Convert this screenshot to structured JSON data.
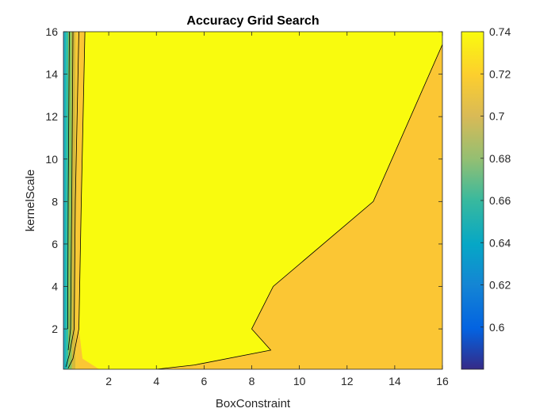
{
  "chart_data": {
    "type": "contour",
    "title": "Accuracy Grid Search",
    "xlabel": "BoxConstraint",
    "ylabel": "kernelScale",
    "xlim": [
      0.1,
      16
    ],
    "ylim": [
      0.1,
      16
    ],
    "x_ticks": [
      2,
      4,
      6,
      8,
      10,
      12,
      14,
      16
    ],
    "y_ticks": [
      2,
      4,
      6,
      8,
      10,
      12,
      14,
      16
    ],
    "colorbar": {
      "range": [
        0.58,
        0.74
      ],
      "ticks": [
        0.6,
        0.62,
        0.64,
        0.66,
        0.68,
        0.7,
        0.72,
        0.74
      ],
      "colormap": "parula"
    },
    "regions": [
      {
        "level": 0.73,
        "color": "#F9FB0E",
        "boundary": [
          [
            1.0,
            16
          ],
          [
            0.85,
            8
          ],
          [
            0.75,
            2
          ],
          [
            0.9,
            0.6
          ],
          [
            1.6,
            0.1
          ],
          [
            4.0,
            0.1
          ],
          [
            5.6,
            0.3
          ],
          [
            8.8,
            1.0
          ],
          [
            8.0,
            2.0
          ],
          [
            8.9,
            4.0
          ],
          [
            13.1,
            8.0
          ],
          [
            16,
            15.4
          ],
          [
            16,
            16
          ]
        ]
      }
    ],
    "contour_lines": [
      {
        "level": 0.73,
        "points": [
          [
            4.0,
            0.1
          ],
          [
            5.6,
            0.3
          ],
          [
            8.8,
            1.0
          ],
          [
            8.0,
            2.0
          ],
          [
            8.9,
            4.0
          ],
          [
            13.1,
            8.0
          ],
          [
            16,
            15.4
          ]
        ]
      },
      {
        "level": 0.73,
        "points": [
          [
            1.0,
            16
          ],
          [
            0.85,
            8
          ],
          [
            0.75,
            2
          ],
          [
            0.5,
            0.6
          ],
          [
            0.3,
            0.15
          ]
        ]
      },
      {
        "level": 0.72,
        "points": [
          [
            0.75,
            16
          ],
          [
            0.6,
            8
          ],
          [
            0.55,
            2
          ],
          [
            0.35,
            0.8
          ],
          [
            0.2,
            0.2
          ]
        ]
      },
      {
        "level": 0.7,
        "points": [
          [
            0.5,
            16
          ],
          [
            0.45,
            8
          ],
          [
            0.4,
            2
          ],
          [
            0.3,
            1.0
          ]
        ]
      },
      {
        "level": 0.68,
        "points": [
          [
            0.35,
            16
          ],
          [
            0.3,
            8
          ],
          [
            0.28,
            2
          ]
        ]
      }
    ],
    "strips": [
      {
        "x0": 0.1,
        "x1": 0.14,
        "color": "#1E9BD5"
      },
      {
        "x0": 0.14,
        "x1": 0.2,
        "color": "#10B4C4"
      },
      {
        "x0": 0.2,
        "x1": 0.3,
        "color": "#35BFA0"
      },
      {
        "x0": 0.3,
        "x1": 0.45,
        "color": "#8BC55B"
      },
      {
        "x0": 0.45,
        "x1": 0.6,
        "color": "#D4BA3C"
      },
      {
        "x0": 0.6,
        "x1": 0.75,
        "color": "#F7C935"
      }
    ],
    "background_color": "#FBC634",
    "grid": false
  }
}
